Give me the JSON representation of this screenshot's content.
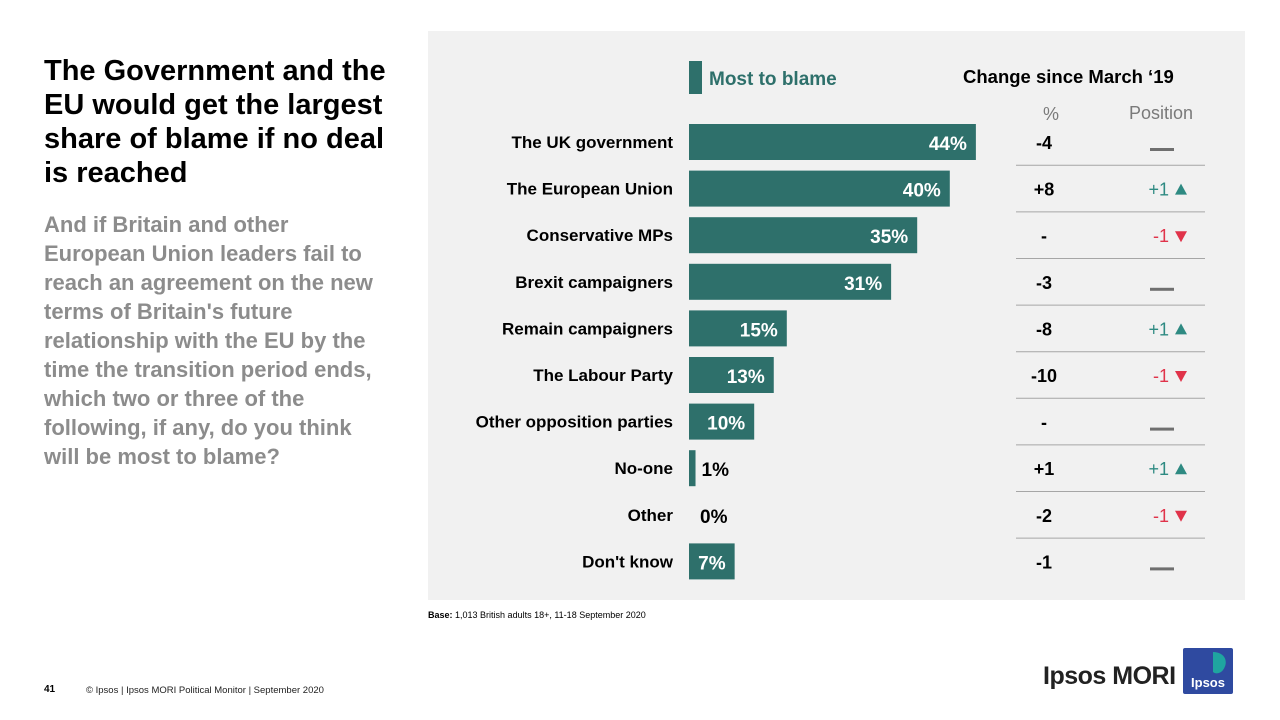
{
  "slide": {
    "title": "The Government and the EU would get the largest share of blame if no deal is reached",
    "subtitle": "And if Britain and other European Union leaders fail to reach an agreement on the new terms of Britain's future relationship with the EU by the time the transition period ends, which two or three of the following, if any, do you think will be most to blame?",
    "base_label": "Base:",
    "base_text": "1,013 British adults 18+, 11-18 September 2020",
    "page_number": "41",
    "copyright": "© Ipsos | Ipsos MORI Political Monitor | September 2020",
    "logo_text": "Ipsos MORI",
    "badge_text": "Ipsos"
  },
  "colors": {
    "bar": "#2e706b",
    "up": "#2e8a82",
    "down": "#e0334a",
    "dash": "#6f6f6f",
    "badge": "#2f4aa0",
    "badge_accent": "#1fa5a0"
  },
  "chart_data": {
    "type": "bar",
    "orientation": "horizontal",
    "legend": "Most to blame",
    "change_header": "Change since March ‘19",
    "col_pct_header": "%",
    "col_position_header": "Position",
    "categories": [
      "The UK government",
      "The European Union",
      "Conservative MPs",
      "Brexit campaigners",
      "Remain campaigners",
      "The Labour Party",
      "Other opposition parties",
      "No-one",
      "Other",
      "Don't know"
    ],
    "values": [
      44,
      40,
      35,
      31,
      15,
      13,
      10,
      1,
      0,
      7
    ],
    "value_labels": [
      "44%",
      "40%",
      "35%",
      "31%",
      "15%",
      "13%",
      "10%",
      "1%",
      "0%",
      "7%"
    ],
    "xlim": [
      0,
      50
    ],
    "change_pct": [
      "-4",
      "+8",
      "-",
      "-3",
      "-8",
      "-10",
      "-",
      "+1",
      "-2",
      "-1"
    ],
    "position_change": [
      {
        "dir": "same",
        "label": ""
      },
      {
        "dir": "up",
        "label": "+1"
      },
      {
        "dir": "down",
        "label": "-1"
      },
      {
        "dir": "same",
        "label": ""
      },
      {
        "dir": "up",
        "label": "+1"
      },
      {
        "dir": "down",
        "label": "-1"
      },
      {
        "dir": "same",
        "label": ""
      },
      {
        "dir": "up",
        "label": "+1"
      },
      {
        "dir": "down",
        "label": "-1"
      },
      {
        "dir": "same",
        "label": ""
      }
    ]
  }
}
